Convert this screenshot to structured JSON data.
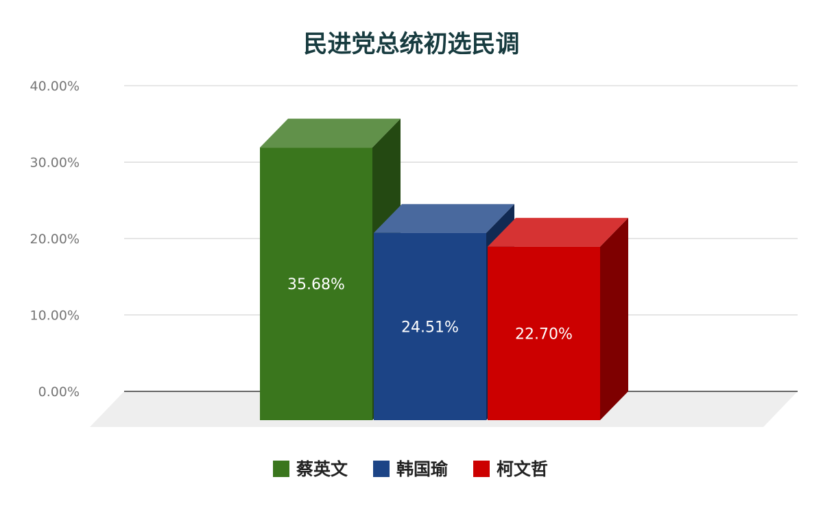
{
  "chart_data": {
    "type": "bar",
    "title": "民进党总统初选民调",
    "xlabel": "",
    "ylabel": "",
    "ylim": [
      0,
      0.4
    ],
    "yticks": [
      0,
      0.1,
      0.2,
      0.3,
      0.4
    ],
    "ytick_labels": [
      "0.00%",
      "10.00%",
      "20.00%",
      "30.00%",
      "40.00%"
    ],
    "grid": true,
    "legend_position": "bottom",
    "style": "3d",
    "series": [
      {
        "name": "蔡英文",
        "value": 0.3568,
        "label": "35.68%",
        "color": "#3a761d"
      },
      {
        "name": "韩国瑜",
        "value": 0.2451,
        "label": "24.51%",
        "color": "#1c4486"
      },
      {
        "name": "柯文哲",
        "value": 0.227,
        "label": "22.70%",
        "color": "#cc0000"
      }
    ]
  }
}
